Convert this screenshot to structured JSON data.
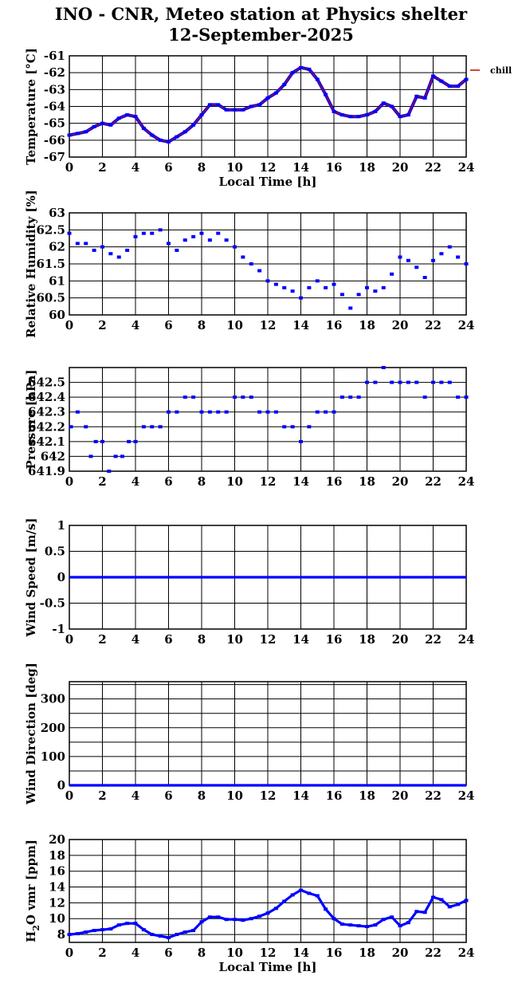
{
  "header": {
    "title_line1": "INO - CNR, Meteo station at Physics shelter",
    "title_line2": "12-September-2025"
  },
  "colors": {
    "series_blue": "#0000ff",
    "temperature_line": "#cc0000",
    "grid": "#000000"
  },
  "chart_data": [
    {
      "id": "temperature",
      "type": "line",
      "ylabel": "Temperature [°C]",
      "xlabel": "Local Time [h]",
      "xlim": [
        0,
        24
      ],
      "ylim": [
        -67,
        -61
      ],
      "yticks": [
        -67,
        -66,
        -65,
        -64,
        -63,
        -62,
        -61
      ],
      "ytick_labels": [
        "-67",
        "-66",
        "-65",
        "-64",
        "-63",
        "-62",
        "-61"
      ],
      "xticks": [
        0,
        2,
        4,
        6,
        8,
        10,
        12,
        14,
        16,
        18,
        20,
        22,
        24
      ],
      "xtick_labels": [
        "0",
        "2",
        "4",
        "6",
        "8",
        "10",
        "12",
        "14",
        "16",
        "18",
        "20",
        "22",
        "24"
      ],
      "grid": true,
      "legend": [
        {
          "label": "chill",
          "color": "#cc0000",
          "position": "top-right-outside"
        }
      ],
      "series": [
        {
          "name": "chill",
          "style": "line+markers",
          "x": [
            0,
            0.5,
            1.0,
            1.5,
            2.0,
            2.5,
            3.0,
            3.5,
            4.0,
            4.5,
            5.0,
            5.5,
            6.0,
            6.5,
            7.0,
            7.5,
            8.0,
            8.5,
            9.0,
            9.5,
            10.0,
            10.5,
            11.0,
            11.5,
            12.0,
            12.5,
            13.0,
            13.5,
            14.0,
            14.5,
            15.0,
            15.5,
            16.0,
            16.5,
            17.0,
            17.5,
            18.0,
            18.5,
            19.0,
            19.5,
            20.0,
            20.5,
            21.0,
            21.5,
            22.0,
            22.5,
            23.0,
            23.5,
            24.0
          ],
          "y": [
            -65.7,
            -65.6,
            -65.5,
            -65.2,
            -65.0,
            -65.1,
            -64.7,
            -64.5,
            -64.6,
            -65.3,
            -65.7,
            -66.0,
            -66.1,
            -65.8,
            -65.5,
            -65.1,
            -64.5,
            -63.9,
            -63.9,
            -64.2,
            -64.2,
            -64.2,
            -64.0,
            -63.9,
            -63.5,
            -63.2,
            -62.7,
            -62.0,
            -61.7,
            -61.8,
            -62.4,
            -63.3,
            -64.3,
            -64.5,
            -64.6,
            -64.6,
            -64.5,
            -64.3,
            -63.8,
            -64.0,
            -64.6,
            -64.5,
            -63.4,
            -63.5,
            -62.2,
            -62.5,
            -62.8,
            -62.8,
            -62.4
          ]
        }
      ]
    },
    {
      "id": "humidity",
      "type": "scatter",
      "ylabel": "Relative Humidity [%]",
      "xlim": [
        0,
        24
      ],
      "ylim": [
        60,
        63
      ],
      "yticks": [
        60,
        60.5,
        61,
        61.5,
        62,
        62.5,
        63
      ],
      "ytick_labels": [
        "60",
        "60.5",
        "61",
        "61.5",
        "62",
        "62.5",
        "63"
      ],
      "xticks": [
        0,
        2,
        4,
        6,
        8,
        10,
        12,
        14,
        16,
        18,
        20,
        22,
        24
      ],
      "xtick_labels": [
        "0",
        "2",
        "4",
        "6",
        "8",
        "10",
        "12",
        "14",
        "16",
        "18",
        "20",
        "22",
        "24"
      ],
      "grid": true,
      "series": [
        {
          "style": "markers",
          "x": [
            0,
            0.5,
            1.0,
            1.5,
            2.0,
            2.5,
            3.0,
            3.5,
            4.0,
            4.5,
            5.0,
            5.5,
            6.0,
            6.5,
            7.0,
            7.5,
            8.0,
            8.5,
            9.0,
            9.5,
            10.0,
            10.5,
            11.0,
            11.5,
            12.0,
            12.5,
            13.0,
            13.5,
            14.0,
            14.5,
            15.0,
            15.5,
            16.0,
            16.5,
            17.0,
            17.5,
            18.0,
            18.5,
            19.0,
            19.5,
            20.0,
            20.5,
            21.0,
            21.5,
            22.0,
            22.5,
            23.0,
            23.5,
            24.0
          ],
          "y": [
            62.4,
            62.1,
            62.1,
            61.9,
            62.0,
            61.8,
            61.7,
            61.9,
            62.3,
            62.4,
            62.4,
            62.5,
            62.1,
            61.9,
            62.2,
            62.3,
            62.4,
            62.2,
            62.4,
            62.2,
            62.0,
            61.7,
            61.5,
            61.3,
            61.0,
            60.9,
            60.8,
            60.7,
            60.5,
            60.8,
            61.0,
            60.8,
            60.9,
            60.6,
            60.2,
            60.6,
            60.8,
            60.7,
            60.8,
            61.2,
            61.7,
            61.6,
            61.4,
            61.1,
            61.6,
            61.8,
            62.0,
            61.7,
            61.5
          ]
        }
      ]
    },
    {
      "id": "pressure",
      "type": "scatter",
      "ylabel": "Pressure [hPa]",
      "xlim": [
        0,
        24
      ],
      "ylim": [
        641.9,
        642.6
      ],
      "yticks": [
        641.9,
        642,
        642.1,
        642.2,
        642.3,
        642.4,
        642.5
      ],
      "ytick_labels": [
        "641.9",
        "642",
        "642.1",
        "642.2",
        "642.3",
        "642.4",
        "642.5"
      ],
      "xticks": [
        0,
        2,
        4,
        6,
        8,
        10,
        12,
        14,
        16,
        18,
        20,
        22,
        24
      ],
      "xtick_labels": [
        "0",
        "2",
        "4",
        "6",
        "8",
        "10",
        "12",
        "14",
        "16",
        "18",
        "20",
        "22",
        "24"
      ],
      "grid": true,
      "series": [
        {
          "style": "markers",
          "x": [
            0.1,
            0.5,
            1.0,
            1.3,
            1.6,
            2.0,
            2.4,
            2.8,
            3.2,
            3.6,
            4.0,
            4.5,
            5.0,
            5.5,
            6.0,
            6.5,
            7.0,
            7.5,
            8.0,
            8.5,
            9.0,
            9.5,
            10.0,
            10.5,
            11.0,
            11.5,
            12.0,
            12.5,
            13.0,
            13.5,
            14.0,
            14.5,
            15.0,
            15.5,
            16.0,
            16.5,
            17.0,
            17.5,
            18.0,
            18.5,
            19.0,
            19.5,
            20.0,
            20.5,
            21.0,
            21.5,
            22.0,
            22.5,
            23.0,
            23.5,
            24.0
          ],
          "y": [
            642.2,
            642.3,
            642.2,
            642.0,
            642.1,
            642.1,
            641.9,
            642.0,
            642.0,
            642.1,
            642.1,
            642.2,
            642.2,
            642.2,
            642.3,
            642.3,
            642.4,
            642.4,
            642.3,
            642.3,
            642.3,
            642.3,
            642.4,
            642.4,
            642.4,
            642.3,
            642.3,
            642.3,
            642.2,
            642.2,
            642.1,
            642.2,
            642.3,
            642.3,
            642.3,
            642.4,
            642.4,
            642.4,
            642.5,
            642.5,
            642.6,
            642.5,
            642.5,
            642.5,
            642.5,
            642.4,
            642.5,
            642.5,
            642.5,
            642.4,
            642.4
          ]
        }
      ]
    },
    {
      "id": "wind_speed",
      "type": "line",
      "ylabel": "Wind Speed [m/s]",
      "xlim": [
        0,
        24
      ],
      "ylim": [
        -1,
        1
      ],
      "yticks": [
        -1,
        -0.5,
        0,
        0.5,
        1
      ],
      "ytick_labels": [
        "-1",
        "-0.5",
        "0",
        "0.5",
        "1"
      ],
      "xticks": [
        0,
        2,
        4,
        6,
        8,
        10,
        12,
        14,
        16,
        18,
        20,
        22,
        24
      ],
      "xtick_labels": [
        "0",
        "2",
        "4",
        "6",
        "8",
        "10",
        "12",
        "14",
        "16",
        "18",
        "20",
        "22",
        "24"
      ],
      "grid": true,
      "series": [
        {
          "style": "line",
          "x": [
            0,
            24
          ],
          "y": [
            0,
            0
          ]
        }
      ]
    },
    {
      "id": "wind_direction",
      "type": "line",
      "ylabel": "Wind Direction [deg]",
      "xlim": [
        0,
        24
      ],
      "ylim": [
        0,
        360
      ],
      "yticks": [
        0,
        50,
        100,
        150,
        200,
        250,
        300,
        350
      ],
      "ytick_labels": [
        "0",
        "",
        "100",
        "",
        "200",
        "",
        "300",
        ""
      ],
      "xticks": [
        0,
        2,
        4,
        6,
        8,
        10,
        12,
        14,
        16,
        18,
        20,
        22,
        24
      ],
      "xtick_labels": [
        "0",
        "2",
        "4",
        "6",
        "8",
        "10",
        "12",
        "14",
        "16",
        "18",
        "20",
        "22",
        "24"
      ],
      "grid": true,
      "series": [
        {
          "style": "line",
          "x": [
            0,
            24
          ],
          "y": [
            0,
            0
          ]
        }
      ]
    },
    {
      "id": "h2o",
      "type": "line",
      "ylabel": "H2O vmr [ppm]",
      "ylabel_parts": [
        "H",
        "2",
        "O vmr [ppm]"
      ],
      "xlabel": "Local Time [h]",
      "xlim": [
        0,
        24
      ],
      "ylim": [
        7,
        20
      ],
      "yticks": [
        8,
        10,
        12,
        14,
        16,
        18,
        20
      ],
      "ytick_labels": [
        "8",
        "10",
        "12",
        "14",
        "16",
        "18",
        "20"
      ],
      "xticks": [
        0,
        2,
        4,
        6,
        8,
        10,
        12,
        14,
        16,
        18,
        20,
        22,
        24
      ],
      "xtick_labels": [
        "0",
        "2",
        "4",
        "6",
        "8",
        "10",
        "12",
        "14",
        "16",
        "18",
        "20",
        "22",
        "24"
      ],
      "grid": true,
      "series": [
        {
          "style": "line+markers",
          "x": [
            0,
            0.5,
            1.0,
            1.5,
            2.0,
            2.5,
            3.0,
            3.5,
            4.0,
            4.5,
            5.0,
            5.5,
            6.0,
            6.5,
            7.0,
            7.5,
            8.0,
            8.5,
            9.0,
            9.5,
            10.0,
            10.5,
            11.0,
            11.5,
            12.0,
            12.5,
            13.0,
            13.5,
            14.0,
            14.5,
            15.0,
            15.5,
            16.0,
            16.5,
            17.0,
            17.5,
            18.0,
            18.5,
            19.0,
            19.5,
            20.0,
            20.5,
            21.0,
            21.5,
            22.0,
            22.5,
            23.0,
            23.5,
            24.0
          ],
          "y": [
            8.0,
            8.1,
            8.3,
            8.5,
            8.6,
            8.7,
            9.2,
            9.4,
            9.4,
            8.6,
            8.0,
            7.8,
            7.6,
            8.0,
            8.3,
            8.5,
            9.6,
            10.2,
            10.2,
            9.9,
            9.9,
            9.8,
            10.0,
            10.3,
            10.7,
            11.3,
            12.2,
            13.0,
            13.6,
            13.2,
            12.9,
            11.2,
            10.0,
            9.3,
            9.2,
            9.1,
            9.0,
            9.2,
            9.9,
            10.2,
            9.1,
            9.5,
            10.9,
            10.8,
            12.7,
            12.4,
            11.5,
            11.8,
            12.3
          ]
        }
      ]
    }
  ]
}
